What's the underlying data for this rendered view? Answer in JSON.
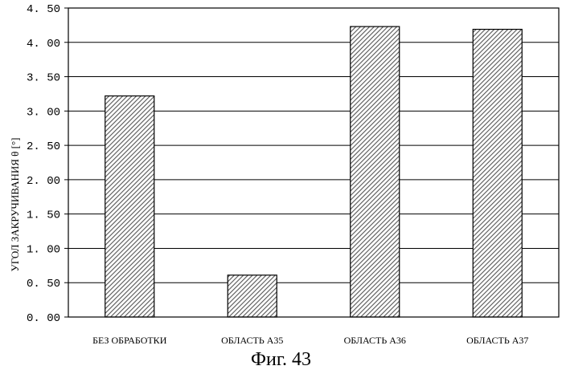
{
  "caption": "Фиг. 43",
  "chart_data": {
    "type": "bar",
    "title": "",
    "xlabel": "",
    "ylabel": "УГОЛ ЗАКРУЧИВАНИЯ θ [°]",
    "categories": [
      "БЕЗ ОБРАБОТКИ",
      "ОБЛАСТЬ А35",
      "ОБЛАСТЬ А36",
      "ОБЛАСТЬ А37"
    ],
    "values": [
      3.22,
      0.61,
      4.23,
      4.19
    ],
    "ylim": [
      0,
      4.5
    ],
    "yticks": [
      "0. 00",
      "0. 50",
      "1. 00",
      "1. 50",
      "2. 00",
      "2. 50",
      "3. 00",
      "3. 50",
      "4. 00",
      "4. 50"
    ],
    "grid": true,
    "bar_pattern": "diagonal-hatch"
  }
}
